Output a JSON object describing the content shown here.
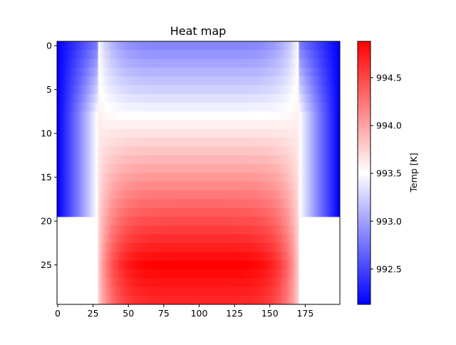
{
  "chart_data": {
    "type": "heatmap",
    "title": "Heat map",
    "xlabel": "",
    "ylabel": "",
    "colormap": "bwr",
    "colors": {
      "low": "#0000ff",
      "mid": "#ffffff",
      "high": "#ff0000"
    },
    "grid": false,
    "n_rows": 30,
    "n_cols": 200,
    "x_range": [
      -0.5,
      199.5
    ],
    "y_range": [
      -0.5,
      29.5
    ],
    "y_inverted": true,
    "xticks": [
      0,
      25,
      50,
      75,
      100,
      125,
      150,
      175
    ],
    "yticks": [
      0,
      5,
      10,
      15,
      20,
      25
    ],
    "empty_region": {
      "rows": [
        20,
        29
      ],
      "cols_outside": [
        29,
        170
      ]
    },
    "field_model": {
      "inner_cols": [
        29,
        170
      ],
      "edge_blue_min": 992.13,
      "interface_value": 993.6,
      "top_row_center": 992.85,
      "bottom_row_center": 994.88,
      "peak_row": 25
    },
    "colorbar": {
      "label": "Temp [K]",
      "vmin": 992.13,
      "vmax": 994.88,
      "ticks": [
        992.5,
        993.0,
        993.5,
        994.0,
        994.5
      ],
      "tick_labels": [
        "992.5",
        "993.0",
        "993.5",
        "994.0",
        "994.5"
      ]
    }
  }
}
